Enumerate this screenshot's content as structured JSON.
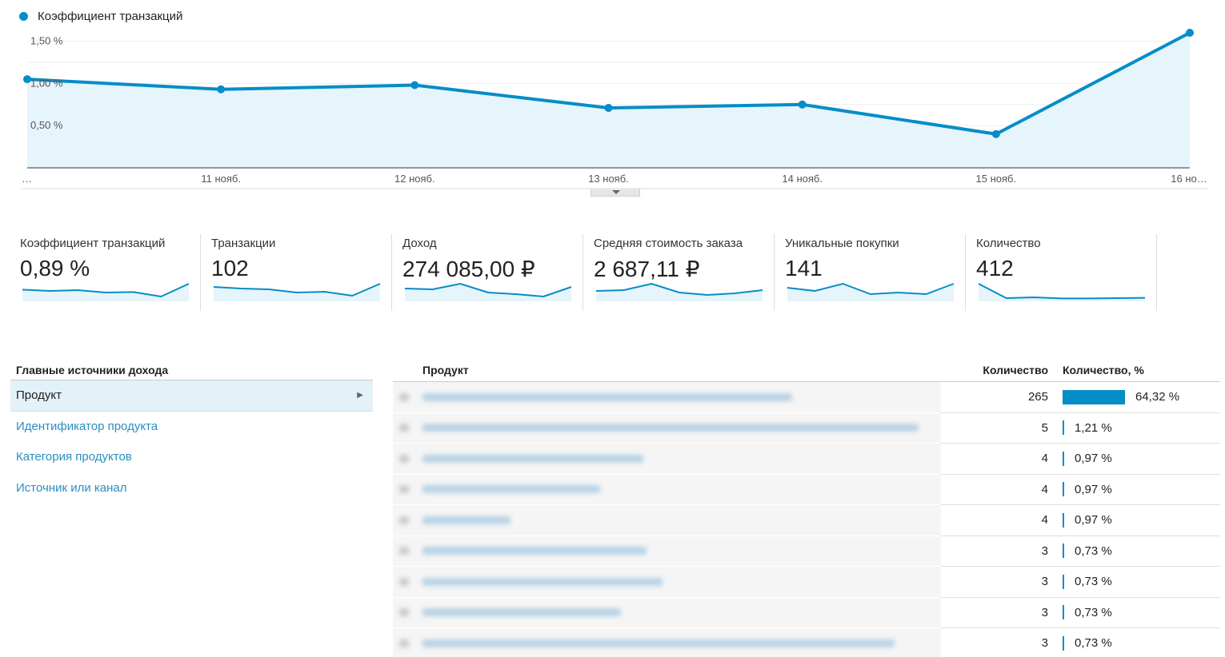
{
  "chart": {
    "legend": "Коэффициент транзакций",
    "line_color": "#058dc7",
    "fill_color": "#e6f4fb"
  },
  "chart_data": {
    "type": "area",
    "series": [
      {
        "name": "Коэффициент транзакций",
        "values": [
          1.05,
          0.93,
          0.98,
          0.71,
          0.75,
          0.4,
          1.6
        ]
      }
    ],
    "x": [
      "…",
      "11 нояб.",
      "12 нояб.",
      "13 нояб.",
      "14 нояб.",
      "15 нояб.",
      "16 но…"
    ],
    "y_ticks": [
      "1,50 %",
      "1,00 %",
      "0,50 %"
    ],
    "y_tick_values": [
      1.5,
      1.0,
      0.5
    ],
    "ylim": [
      0,
      1.5
    ],
    "grid": true
  },
  "scorecards": [
    {
      "label": "Коэффициент транзакций",
      "value": "0,89 %",
      "spark": [
        0.63,
        0.55,
        0.6,
        0.45,
        0.48,
        0.2,
        1.0
      ]
    },
    {
      "label": "Транзакции",
      "value": "102",
      "spark": [
        0.8,
        0.7,
        0.65,
        0.45,
        0.5,
        0.25,
        1.0
      ]
    },
    {
      "label": "Доход",
      "value": "274 085,00 ₽",
      "spark": [
        0.7,
        0.65,
        1.0,
        0.45,
        0.35,
        0.2,
        0.8
      ]
    },
    {
      "label": "Средняя стоимость заказа",
      "value": "2 687,11 ₽",
      "spark": [
        0.55,
        0.6,
        1.0,
        0.45,
        0.3,
        0.4,
        0.6
      ]
    },
    {
      "label": "Уникальные покупки",
      "value": "141",
      "spark": [
        0.75,
        0.55,
        1.0,
        0.35,
        0.45,
        0.35,
        1.0
      ]
    },
    {
      "label": "Количество",
      "value": "412",
      "spark": [
        1.0,
        0.1,
        0.15,
        0.08,
        0.08,
        0.1,
        0.12
      ]
    }
  ],
  "sources": {
    "title": "Главные источники дохода",
    "items": [
      {
        "label": "Продукт",
        "active": true
      },
      {
        "label": "Идентификатор продукта",
        "active": false
      },
      {
        "label": "Категория продуктов",
        "active": false
      },
      {
        "label": "Источник или канал",
        "active": false
      }
    ]
  },
  "table": {
    "headers": {
      "product": "Продукт",
      "qty": "Количество",
      "pct": "Количество, %"
    },
    "rows": [
      {
        "qty": "265",
        "pct": "64,32 %",
        "share": 0.6432
      },
      {
        "qty": "5",
        "pct": "1,21 %",
        "share": 0.0121
      },
      {
        "qty": "4",
        "pct": "0,97 %",
        "share": 0.0097
      },
      {
        "qty": "4",
        "pct": "0,97 %",
        "share": 0.0097
      },
      {
        "qty": "4",
        "pct": "0,97 %",
        "share": 0.0097
      },
      {
        "qty": "3",
        "pct": "0,73 %",
        "share": 0.0073
      },
      {
        "qty": "3",
        "pct": "0,73 %",
        "share": 0.0073
      },
      {
        "qty": "3",
        "pct": "0,73 %",
        "share": 0.0073
      },
      {
        "qty": "3",
        "pct": "0,73 %",
        "share": 0.0073
      }
    ]
  }
}
